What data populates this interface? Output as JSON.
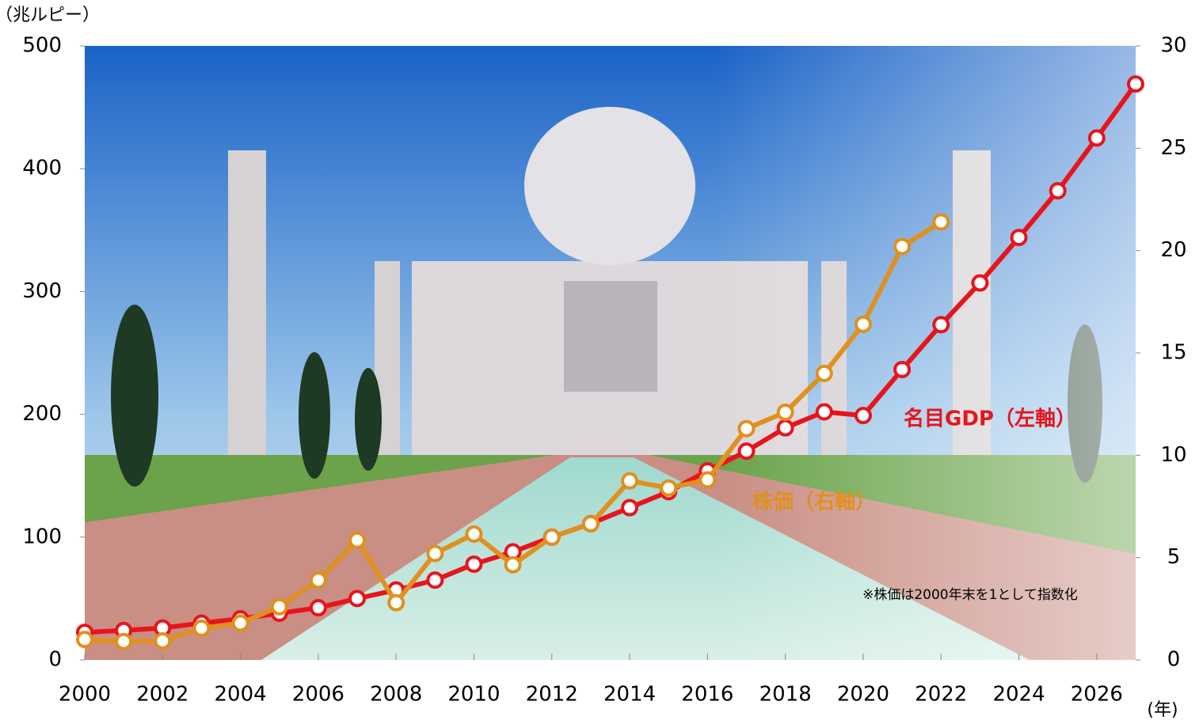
{
  "chart_data": {
    "type": "line",
    "y_label": "（兆ルピー）",
    "x_label": "(年)",
    "note": "※株価は2000年末を1として指数化",
    "x": [
      2000,
      2001,
      2002,
      2003,
      2004,
      2005,
      2006,
      2007,
      2008,
      2009,
      2010,
      2011,
      2012,
      2013,
      2014,
      2015,
      2016,
      2017,
      2018,
      2019,
      2020,
      2021,
      2022,
      2023,
      2024,
      2025,
      2026,
      2027
    ],
    "xlim": [
      2000,
      2027
    ],
    "xticks": [
      2000,
      2002,
      2004,
      2006,
      2008,
      2010,
      2012,
      2014,
      2016,
      2018,
      2020,
      2022,
      2024,
      2026
    ],
    "ylim": [
      0,
      500
    ],
    "yticks": [
      0,
      100,
      200,
      300,
      400,
      500
    ],
    "y2lim": [
      0,
      30
    ],
    "y2ticks": [
      0,
      5,
      10,
      15,
      20,
      25,
      30
    ],
    "series": [
      {
        "name": "名目GDP（左軸）",
        "color": "#e8141c",
        "values": [
          22.5,
          24,
          26,
          30,
          33.5,
          38,
          42.5,
          50,
          57,
          65,
          78,
          88,
          100,
          111,
          124,
          137,
          154,
          170,
          189,
          202,
          199,
          236.5,
          273,
          307,
          344,
          382,
          425,
          469
        ]
      },
      {
        "name": "株価（右軸）",
        "color": "#e0901e",
        "axis": "y2",
        "values": [
          1.0,
          0.9,
          0.93,
          1.55,
          1.8,
          2.6,
          3.9,
          5.85,
          2.8,
          5.2,
          6.15,
          4.65,
          6.0,
          6.65,
          8.75,
          8.4,
          8.8,
          11.3,
          12.1,
          14.0,
          16.4,
          20.2,
          21.4,
          null,
          null,
          null,
          null,
          null
        ]
      }
    ]
  }
}
